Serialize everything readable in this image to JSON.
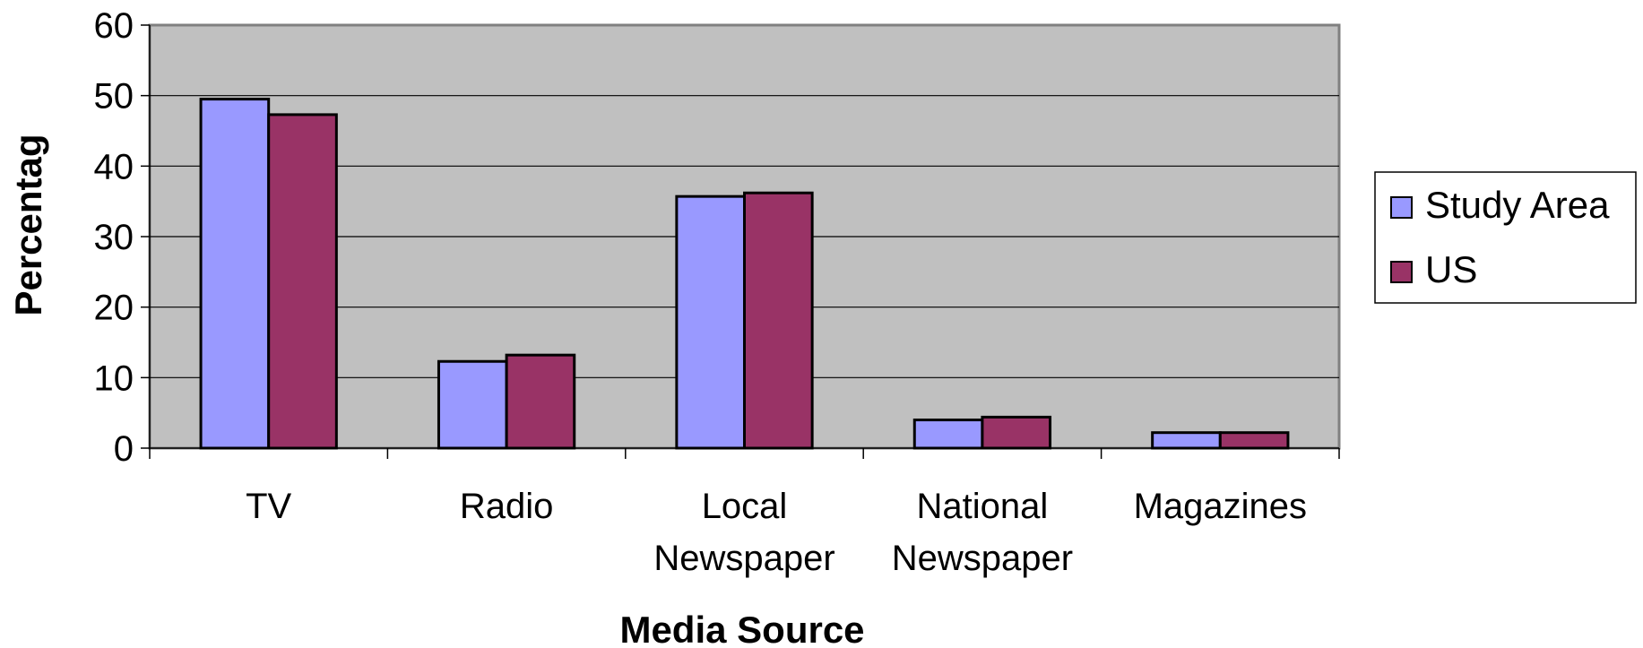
{
  "chart_data": {
    "type": "bar",
    "categories": [
      [
        "TV"
      ],
      [
        "Radio"
      ],
      [
        "Local",
        "Newspaper"
      ],
      [
        "National",
        "Newspaper"
      ],
      [
        "Magazines"
      ]
    ],
    "series": [
      {
        "name": "Study Area",
        "color": "#9999ff",
        "values": [
          49.5,
          12.3,
          35.7,
          4.0,
          2.2
        ]
      },
      {
        "name": "US",
        "color": "#993366",
        "values": [
          47.3,
          13.2,
          36.2,
          4.4,
          2.2
        ]
      }
    ],
    "xlabel": "Media Source",
    "ylabel": "Percentag",
    "ylim": [
      0,
      60
    ],
    "yticks": [
      0,
      10,
      20,
      30,
      40,
      50,
      60
    ],
    "grid": true,
    "plot_background": "#c0c0c0",
    "legend_position": "right"
  }
}
